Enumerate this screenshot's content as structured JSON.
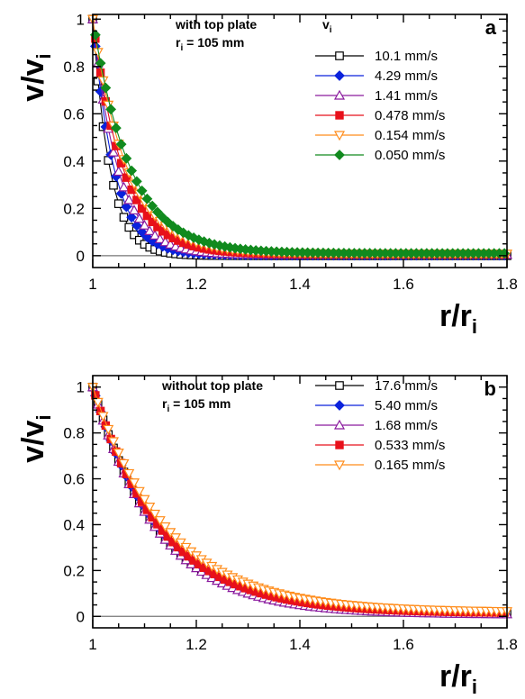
{
  "chart_data": [
    {
      "type": "line",
      "panel_label": "a",
      "ylabel": {
        "main": "v/v",
        "sub": "i"
      },
      "xlabel": {
        "main": "r/r",
        "sub": "i"
      },
      "xlim": [
        1,
        1.8
      ],
      "ylim": [
        -0.05,
        1.02
      ],
      "xticks": [
        1,
        1.2,
        1.4,
        1.6,
        1.8
      ],
      "xtick_labels": [
        "1",
        "1.2",
        "1.4",
        "1.6",
        "1.8"
      ],
      "yticks": [
        0,
        0.2,
        0.4,
        0.6,
        0.8,
        1
      ],
      "ytick_labels": [
        "0",
        "0.2",
        "0.4",
        "0.6",
        "0.8",
        "1"
      ],
      "zero_line": true,
      "annotation": {
        "line1": "with top plate",
        "line2_main": "r",
        "line2_sub": "i",
        "line2_rest": " = 105 mm"
      },
      "legend": {
        "title_main": "v",
        "title_sub": "i",
        "position": "top-right"
      },
      "series": [
        {
          "name": "10.1 mm/s",
          "color": "#000000",
          "marker": "square-open",
          "decay": 0.033,
          "tail": 0.0,
          "x_start": 1.0,
          "x_end": 1.8,
          "dx": 0.01
        },
        {
          "name": "4.29 mm/s",
          "color": "#0a22dc",
          "marker": "diamond-filled",
          "decay": 0.041,
          "tail": 0.002,
          "x_start": 1.005,
          "x_end": 1.8,
          "dx": 0.01
        },
        {
          "name": "1.41 mm/s",
          "color": "#8a1a9e",
          "marker": "triangle-open",
          "decay": 0.048,
          "tail": 0.004,
          "x_start": 1.0,
          "x_end": 1.8,
          "dx": 0.01
        },
        {
          "name": "0.478 mm/s",
          "color": "#e8101a",
          "marker": "square-filled",
          "decay": 0.058,
          "tail": 0.006,
          "x_start": 1.005,
          "x_end": 1.8,
          "dx": 0.01
        },
        {
          "name": "0.154 mm/s",
          "color": "#ff8c1a",
          "marker": "triangle-down-open",
          "decay": 0.066,
          "tail": 0.008,
          "x_start": 1.0,
          "x_end": 1.8,
          "dx": 0.01
        },
        {
          "name": "0.050 mm/s",
          "color": "#118a1e",
          "marker": "diamond-filled",
          "decay": 0.072,
          "tail": 0.01,
          "x_start": 1.005,
          "x_end": 1.8,
          "dx": 0.01
        }
      ]
    },
    {
      "type": "line",
      "panel_label": "b",
      "ylabel": {
        "main": "v/v",
        "sub": "i"
      },
      "xlabel": {
        "main": "r/r",
        "sub": "i"
      },
      "xlim": [
        1,
        1.8
      ],
      "ylim": [
        -0.05,
        1.05
      ],
      "xticks": [
        1,
        1.2,
        1.4,
        1.6,
        1.8
      ],
      "xtick_labels": [
        "1",
        "1.2",
        "1.4",
        "1.6",
        "1.8"
      ],
      "yticks": [
        0,
        0.2,
        0.4,
        0.6,
        0.8,
        1
      ],
      "ytick_labels": [
        "0",
        "0.2",
        "0.4",
        "0.6",
        "0.8",
        "1"
      ],
      "zero_line": true,
      "annotation": {
        "line1": "without top plate",
        "line2_main": "r",
        "line2_sub": "i",
        "line2_rest": " = 105 mm"
      },
      "legend": {
        "position": "top-right"
      },
      "series": [
        {
          "name": "17.6 mm/s",
          "color": "#000000",
          "marker": "square-open",
          "decay": 0.128,
          "tail": 0.01,
          "x_start": 1.0,
          "x_end": 1.8,
          "dx": 0.01
        },
        {
          "name": "5.40 mm/s",
          "color": "#0a22dc",
          "marker": "diamond-filled",
          "decay": 0.13,
          "tail": 0.012,
          "x_start": 1.005,
          "x_end": 1.8,
          "dx": 0.01
        },
        {
          "name": "1.68 mm/s",
          "color": "#8a1a9e",
          "marker": "triangle-open",
          "decay": 0.126,
          "tail": 0.008,
          "x_start": 1.0,
          "x_end": 1.8,
          "dx": 0.01
        },
        {
          "name": "0.533 mm/s",
          "color": "#e8101a",
          "marker": "square-filled",
          "decay": 0.134,
          "tail": 0.014,
          "x_start": 1.005,
          "x_end": 1.8,
          "dx": 0.01
        },
        {
          "name": "0.165 mm/s",
          "color": "#ff8c1a",
          "marker": "triangle-down-open",
          "decay": 0.145,
          "tail": 0.018,
          "x_start": 1.0,
          "x_end": 1.8,
          "dx": 0.01
        }
      ]
    }
  ]
}
